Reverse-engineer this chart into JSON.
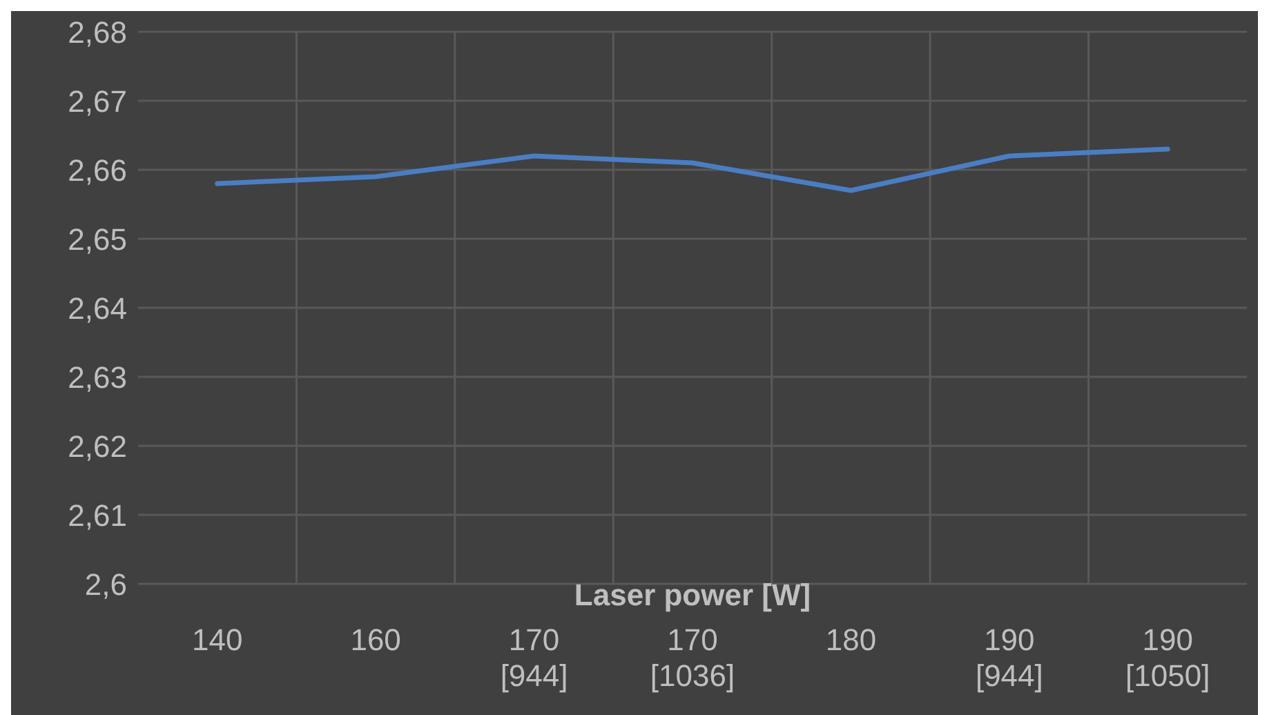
{
  "chart_data": {
    "type": "line",
    "xlabel": "Laser power [W]",
    "categories": [
      "140",
      "160",
      "170\n[944]",
      "170\n[1036]",
      "180",
      "190\n[944]",
      "190\n[1050]"
    ],
    "series": [
      {
        "color": "#4a7ec4",
        "values": [
          2.658,
          2.659,
          2.662,
          2.661,
          2.657,
          2.662,
          2.663
        ]
      }
    ],
    "ylim": [
      2.6,
      2.68
    ],
    "yticks": [
      {
        "value": 2.6,
        "label": "2,6"
      },
      {
        "value": 2.61,
        "label": "2,61"
      },
      {
        "value": 2.62,
        "label": "2,62"
      },
      {
        "value": 2.63,
        "label": "2,63"
      },
      {
        "value": 2.64,
        "label": "2,64"
      },
      {
        "value": 2.65,
        "label": "2,65"
      },
      {
        "value": 2.66,
        "label": "2,66"
      },
      {
        "value": 2.67,
        "label": "2,67"
      },
      {
        "value": 2.68,
        "label": "2,68"
      }
    ],
    "grid": true,
    "legend": false,
    "marker": "none",
    "line_style": "solid"
  }
}
